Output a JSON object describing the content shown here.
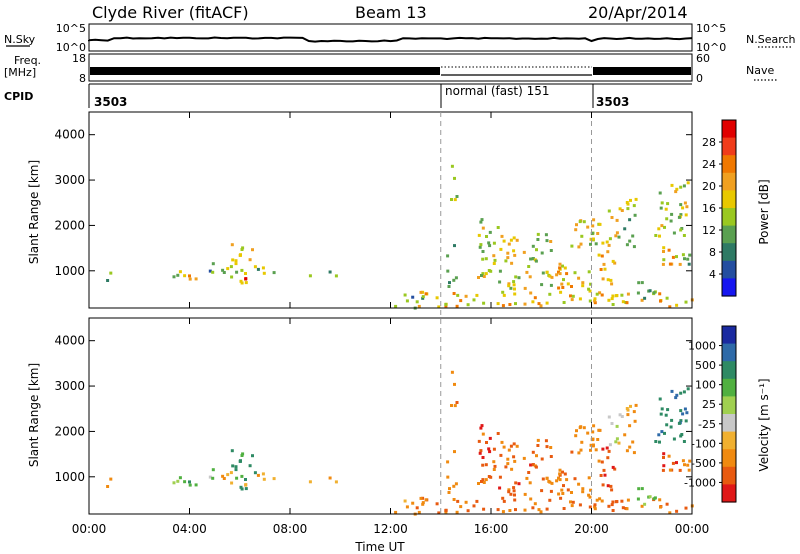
{
  "header": {
    "station": "Clyde River (fitACF)",
    "beam": "Beam 13",
    "date": "20/Apr/2014"
  },
  "noise_panel": {
    "left_label": "N.Sky",
    "left_ticks": [
      "10^5",
      "10^0"
    ],
    "right_label": "N.Search",
    "right_ticks": [
      "10^5",
      "10^0"
    ]
  },
  "freq_panel": {
    "left_label_line1": "Freq.",
    "left_label_line2": "[MHz]",
    "left_ticks": [
      "18",
      "8"
    ],
    "right_label": "Nave",
    "right_ticks": [
      "60",
      "0"
    ]
  },
  "cpid_panel": {
    "label": "CPID",
    "segments": [
      {
        "start_hour": 0,
        "label": "3503"
      },
      {
        "start_hour": 14,
        "label": "normal (fast) 151"
      },
      {
        "start_hour": 20,
        "label": "3503"
      }
    ]
  },
  "power_panel": {
    "ylabel": "Slant Range [km]",
    "yticks": [
      "4000",
      "3000",
      "2000",
      "1000"
    ],
    "colorbar": {
      "label": "Power [dB]",
      "ticks": [
        "28",
        "24",
        "20",
        "16",
        "12",
        "8",
        "4"
      ],
      "colors": [
        "#e00000",
        "#f03c1a",
        "#f07800",
        "#f0a020",
        "#e8c800",
        "#9ac820",
        "#5aa050",
        "#2e7a64",
        "#244ea0",
        "#1616f0"
      ]
    }
  },
  "velocity_panel": {
    "ylabel": "Slant Range [km]",
    "yticks": [
      "4000",
      "3000",
      "2000",
      "1000"
    ],
    "colorbar": {
      "label": "Velocity [m s⁻¹]",
      "ticks": [
        "1000",
        "500",
        "100",
        "25",
        "-25",
        "-100",
        "-500",
        "-1000"
      ],
      "colors": [
        "#1a2aa0",
        "#2e6aa8",
        "#2e8a64",
        "#50b040",
        "#a0d050",
        "#c8c8c8",
        "#f0b030",
        "#f08a10",
        "#e85a10",
        "#e01818"
      ]
    }
  },
  "x_axis": {
    "label": "Time UT",
    "ticks": [
      "00:00",
      "04:00",
      "08:00",
      "12:00",
      "16:00",
      "20:00",
      "00:00"
    ]
  },
  "chart_data": {
    "type": "heatmap",
    "title": "Clyde River (fitACF)",
    "subtitle": "Beam 13",
    "xlabel": "Time UT",
    "x_range_hours": [
      0,
      24
    ],
    "x_ticks": [
      "00:00",
      "04:00",
      "08:00",
      "12:00",
      "16:00",
      "20:00",
      "00:00"
    ],
    "ylabel": "Slant Range [km]",
    "y_range_km": [
      180,
      4500
    ],
    "y_ticks": [
      1000,
      2000,
      3000,
      4000
    ],
    "mode_changes_hours": [
      14,
      20
    ],
    "power_db_range": [
      0,
      30
    ],
    "velocity_scale_ms": [
      -1000,
      -500,
      -100,
      -25,
      25,
      100,
      500,
      1000
    ],
    "echo_regions": [
      {
        "t0": 0.6,
        "t1": 0.9,
        "r0": 750,
        "r1": 1200,
        "power": 10,
        "vel": -150
      },
      {
        "t0": 3.0,
        "t1": 4.0,
        "r0": 800,
        "r1": 1050,
        "power": 14,
        "vel": 60
      },
      {
        "t0": 3.8,
        "t1": 4.3,
        "r0": 850,
        "r1": 1100,
        "power": 18,
        "vel": 80
      },
      {
        "t0": 4.6,
        "t1": 5.0,
        "r0": 950,
        "r1": 1350,
        "power": 9,
        "vel": 40
      },
      {
        "t0": 5.1,
        "t1": 5.8,
        "r0": 850,
        "r1": 1250,
        "power": 14,
        "vel": -80
      },
      {
        "t0": 5.6,
        "t1": 6.6,
        "r0": 700,
        "r1": 1700,
        "power": 16,
        "vel": 120
      },
      {
        "t0": 6.0,
        "t1": 6.4,
        "r0": 750,
        "r1": 1000,
        "power": 26,
        "vel": -60
      },
      {
        "t0": 6.6,
        "t1": 7.4,
        "r0": 880,
        "r1": 1150,
        "power": 12,
        "vel": -90
      },
      {
        "t0": 8.6,
        "t1": 9.0,
        "r0": 880,
        "r1": 1020,
        "power": 10,
        "vel": -150
      },
      {
        "t0": 9.5,
        "t1": 10.0,
        "r0": 850,
        "r1": 1020,
        "power": 9,
        "vel": -100
      },
      {
        "t0": 12.0,
        "t1": 13.3,
        "r0": 200,
        "r1": 500,
        "power": 10,
        "vel": -150
      },
      {
        "t0": 13.0,
        "t1": 24.0,
        "r0": 220,
        "r1": 560,
        "power": 18,
        "vel": -300
      },
      {
        "t0": 14.2,
        "t1": 14.6,
        "r0": 600,
        "r1": 1600,
        "power": 12,
        "vel": -200
      },
      {
        "t0": 14.3,
        "t1": 14.6,
        "r0": 2600,
        "r1": 3500,
        "power": 12,
        "vel": -300
      },
      {
        "t0": 15.4,
        "t1": 16.3,
        "r0": 600,
        "r1": 2200,
        "power": 14,
        "vel": -400
      },
      {
        "t0": 16.3,
        "t1": 17.6,
        "r0": 600,
        "r1": 1800,
        "power": 16,
        "vel": -350
      },
      {
        "t0": 17.6,
        "t1": 18.4,
        "r0": 500,
        "r1": 1900,
        "power": 14,
        "vel": -250
      },
      {
        "t0": 18.3,
        "t1": 19.3,
        "r0": 600,
        "r1": 1600,
        "power": 18,
        "vel": -300
      },
      {
        "t0": 19.3,
        "t1": 20.3,
        "r0": 500,
        "r1": 2200,
        "power": 16,
        "vel": -200
      },
      {
        "t0": 20.3,
        "t1": 21.0,
        "r0": 600,
        "r1": 1700,
        "power": 20,
        "vel": -400
      },
      {
        "t0": 20.6,
        "t1": 21.2,
        "r0": 1700,
        "r1": 2500,
        "power": 16,
        "vel": 0
      },
      {
        "t0": 21.2,
        "t1": 21.8,
        "r0": 1500,
        "r1": 2700,
        "power": 12,
        "vel": -150
      },
      {
        "t0": 21.8,
        "t1": 22.5,
        "r0": 400,
        "r1": 1000,
        "power": 10,
        "vel": 60
      },
      {
        "t0": 22.5,
        "t1": 23.8,
        "r0": 1700,
        "r1": 3000,
        "power": 14,
        "vel": 400
      },
      {
        "t0": 22.8,
        "t1": 23.6,
        "r0": 900,
        "r1": 1600,
        "power": 18,
        "vel": -500
      },
      {
        "t0": 23.5,
        "t1": 24.0,
        "r0": 1000,
        "r1": 1500,
        "power": 10,
        "vel": -200
      }
    ]
  }
}
